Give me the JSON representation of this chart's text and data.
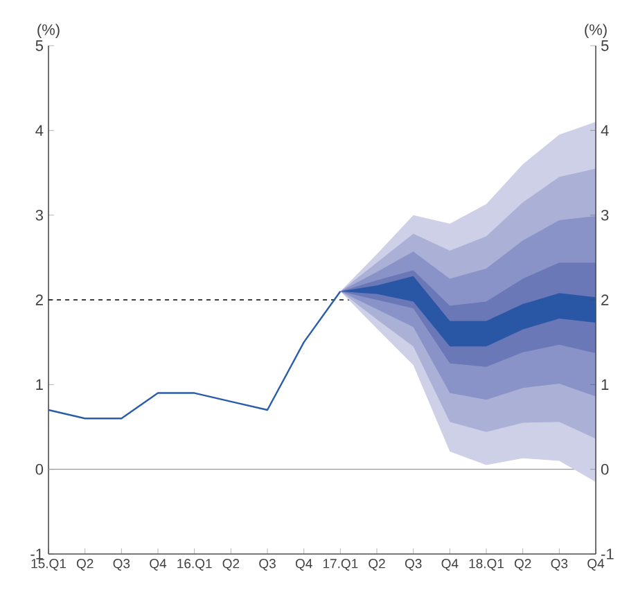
{
  "chart_data": {
    "type": "line",
    "ylabel": "(%)",
    "y2label": "(%)",
    "categories": [
      "15.Q1",
      "Q2",
      "Q3",
      "Q4",
      "16.Q1",
      "Q2",
      "Q3",
      "Q4",
      "17.Q1",
      "Q2",
      "Q3",
      "Q4",
      "18.Q1",
      "Q2",
      "Q3",
      "Q4"
    ],
    "series": [
      {
        "type": "area",
        "color": "#cdd0e6",
        "values": [
          null,
          null,
          null,
          null,
          null,
          null,
          null,
          null,
          null,
          null,
          null,
          null,
          null,
          null,
          null,
          null
        ],
        "upper": [
          null,
          null,
          null,
          null,
          null,
          null,
          null,
          null,
          2.1,
          2.54,
          3.0,
          2.9,
          3.13,
          3.6,
          3.95,
          4.1
        ],
        "lower": [
          null,
          null,
          null,
          null,
          null,
          null,
          null,
          null,
          2.1,
          1.66,
          1.23,
          0.21,
          0.05,
          0.13,
          0.1,
          -0.15
        ]
      },
      {
        "type": "area",
        "color": "#aab0d6",
        "values": [
          null,
          null,
          null,
          null,
          null,
          null,
          null,
          null,
          null,
          null,
          null,
          null,
          null,
          null,
          null,
          null
        ],
        "upper": [
          null,
          null,
          null,
          null,
          null,
          null,
          null,
          null,
          2.1,
          2.44,
          2.78,
          2.58,
          2.75,
          3.15,
          3.45,
          3.55
        ],
        "lower": [
          null,
          null,
          null,
          null,
          null,
          null,
          null,
          null,
          2.1,
          1.77,
          1.45,
          0.56,
          0.44,
          0.55,
          0.56,
          0.36
        ]
      },
      {
        "type": "area",
        "color": "#8a93c8",
        "values": [
          null,
          null,
          null,
          null,
          null,
          null,
          null,
          null,
          null,
          null,
          null,
          null,
          null,
          null,
          null,
          null
        ],
        "upper": [
          null,
          null,
          null,
          null,
          null,
          null,
          null,
          null,
          2.1,
          2.33,
          2.57,
          2.25,
          2.37,
          2.7,
          2.94,
          2.99
        ],
        "lower": [
          null,
          null,
          null,
          null,
          null,
          null,
          null,
          null,
          2.1,
          1.89,
          1.68,
          0.9,
          0.82,
          0.96,
          1.01,
          0.86
        ]
      },
      {
        "type": "area",
        "color": "#6a78b8",
        "values": [
          null,
          null,
          null,
          null,
          null,
          null,
          null,
          null,
          null,
          null,
          null,
          null,
          null,
          null,
          null,
          null
        ],
        "upper": [
          null,
          null,
          null,
          null,
          null,
          null,
          null,
          null,
          2.1,
          2.23,
          2.35,
          1.93,
          1.98,
          2.25,
          2.44,
          2.44
        ],
        "lower": [
          null,
          null,
          null,
          null,
          null,
          null,
          null,
          null,
          2.1,
          2.0,
          1.9,
          1.25,
          1.21,
          1.38,
          1.47,
          1.37
        ]
      },
      {
        "type": "area",
        "color": "#2a56a6",
        "values": [
          null,
          null,
          null,
          null,
          null,
          null,
          null,
          null,
          null,
          null,
          null,
          null,
          null,
          null,
          null,
          null
        ],
        "upper": [
          null,
          null,
          null,
          null,
          null,
          null,
          null,
          null,
          2.1,
          2.17,
          2.28,
          1.75,
          1.75,
          1.95,
          2.08,
          2.03
        ],
        "lower": [
          null,
          null,
          null,
          null,
          null,
          null,
          null,
          null,
          2.1,
          2.07,
          1.98,
          1.45,
          1.45,
          1.65,
          1.78,
          1.73
        ]
      },
      {
        "color": "#2a5caa",
        "values": [
          0.7,
          0.6,
          0.6,
          0.9,
          0.9,
          0.8,
          0.7,
          1.5,
          2.1,
          null,
          null,
          null,
          null,
          null,
          null,
          null
        ]
      }
    ],
    "ylim": [
      -1,
      5
    ],
    "yticks": [
      -1,
      0,
      1,
      2,
      3,
      4,
      5
    ],
    "y2lim": [
      -1,
      5
    ],
    "y2ticks": [
      -1,
      0,
      1,
      2,
      3,
      4,
      5
    ],
    "ref_lines": [
      {
        "axis": "y",
        "value": 0,
        "color": "#999999",
        "line_style": "solid"
      },
      {
        "axis": "y",
        "value": 2,
        "color": "#000000",
        "line_style": "dashed"
      }
    ],
    "marker": "none",
    "line_style": "solid"
  }
}
